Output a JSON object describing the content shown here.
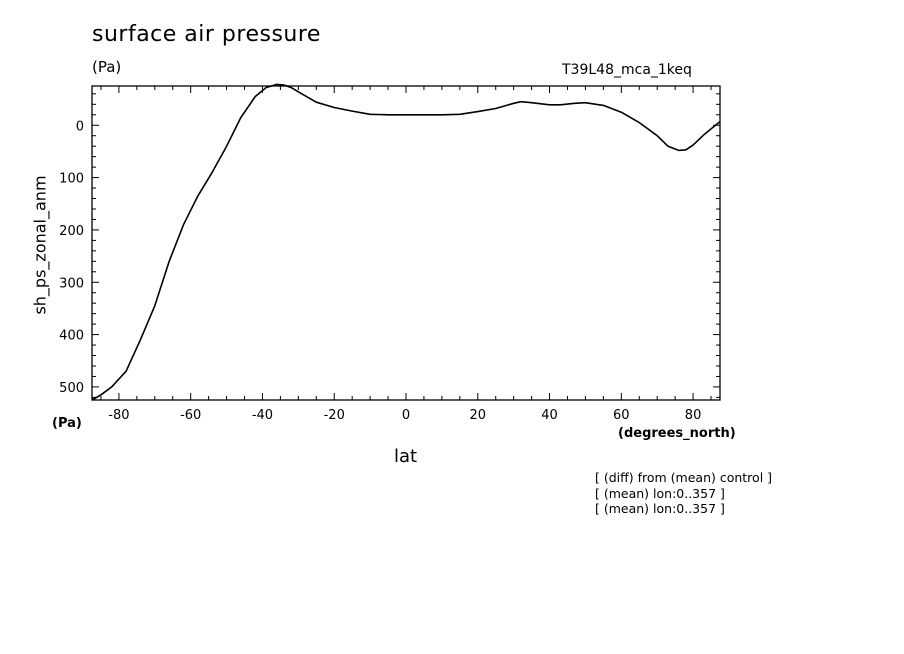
{
  "chart_data": {
    "type": "line",
    "title": "surface air pressure",
    "units_label": "(Pa)",
    "run_label": "T39L48_mca_1keq",
    "ylabel": "sh_ps_zonal_anm",
    "y_units": "(Pa)",
    "xlabel": "lat",
    "x_units": "(degrees_north)",
    "xlim": [
      -87.5,
      87.5
    ],
    "ylim": [
      525,
      -75
    ],
    "y_inverted": true,
    "x_ticks": [
      -80,
      -60,
      -40,
      -20,
      0,
      20,
      40,
      60,
      80
    ],
    "y_ticks": [
      0,
      100,
      200,
      300,
      400,
      500
    ],
    "x_tick_labels": [
      "-80",
      "-60",
      "-40",
      "-20",
      "0",
      "20",
      "40",
      "60",
      "80"
    ],
    "y_tick_labels": [
      "0",
      "100",
      "200",
      "300",
      "400",
      "500"
    ],
    "grid": false,
    "series": [
      {
        "x": [
          -87.5,
          -85,
          -82,
          -78,
          -74,
          -70,
          -66,
          -62,
          -58,
          -54,
          -50,
          -46,
          -42,
          -39,
          -36,
          -34,
          -32,
          -30,
          -25,
          -20,
          -15,
          -10,
          -5,
          0,
          5,
          10,
          15,
          20,
          25,
          30,
          32,
          35,
          40,
          43,
          47,
          50,
          55,
          60,
          65,
          70,
          73,
          76,
          78,
          80,
          83,
          87.5
        ],
        "y": [
          525,
          515,
          500,
          470,
          410,
          345,
          260,
          190,
          135,
          90,
          40,
          -15,
          -55,
          -72,
          -78,
          -77,
          -72,
          -64,
          -44,
          -34,
          -27,
          -21,
          -20,
          -20,
          -20,
          -20,
          -21,
          -26,
          -32,
          -42,
          -45,
          -43,
          -39,
          -39,
          -42,
          -43,
          -38,
          -25,
          -5,
          20,
          40,
          48,
          47,
          38,
          18,
          -7
        ]
      }
    ]
  },
  "notes": [
    "[ (diff) from (mean) control ]",
    "[ (mean) lon:0..357 ]",
    "[ (mean) lon:0..357 ]"
  ]
}
